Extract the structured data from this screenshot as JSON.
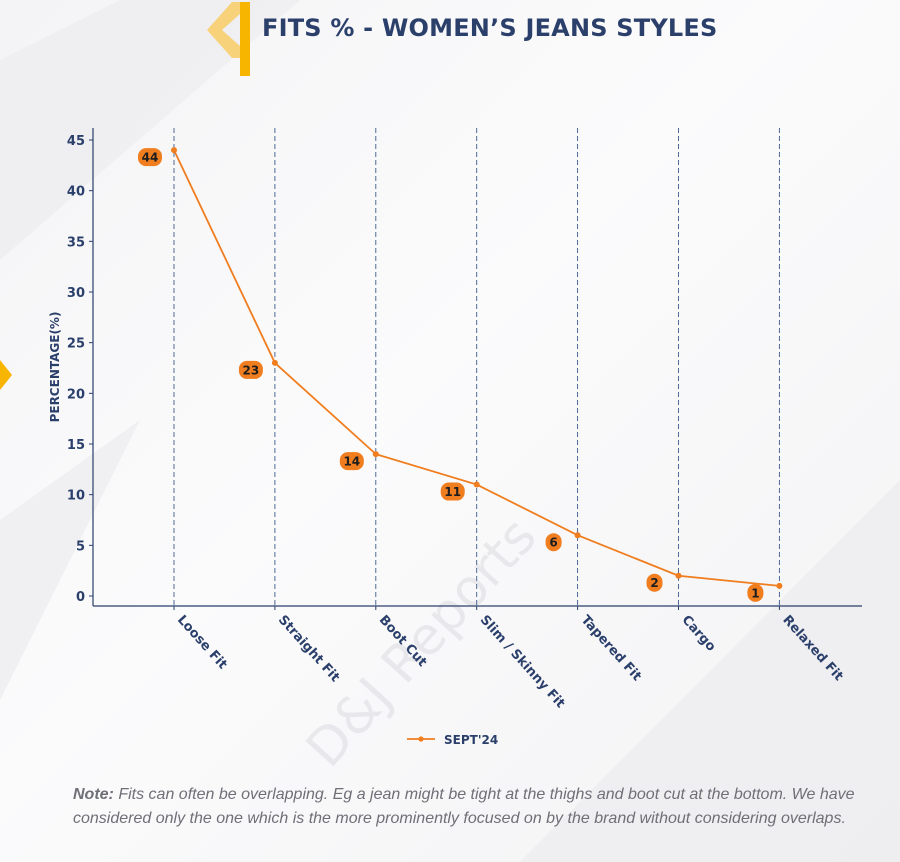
{
  "title": "FITS % - WOMEN’S JEANS STYLES",
  "note": {
    "label": "Note:",
    "text": " Fits can often be overlapping. Eg a jean might be tight at the thighs and boot cut at the bottom. We have considered only the one which is the more prominently focused on by the brand without considering overlaps."
  },
  "watermark": "D&J Reports",
  "colors": {
    "title": "#2b3f6b",
    "series": "#f07d1e",
    "axis": "#2b3f6b",
    "accent": "#f7b500"
  },
  "chart_data": {
    "type": "line",
    "ylabel": "PERCENTAGE(%)",
    "xlabel": "",
    "ylim": [
      0,
      45
    ],
    "yticks": [
      0,
      5,
      10,
      15,
      20,
      25,
      30,
      35,
      40,
      45
    ],
    "categories": [
      "Loose Fit",
      "Straight Fit",
      "Boot Cut",
      "Slim / Skinny Fit",
      "Tapered Fit",
      "Cargo",
      "Relaxed Fit"
    ],
    "series": [
      {
        "name": "SEPT'24",
        "values": [
          44,
          23,
          14,
          11,
          6,
          2,
          1
        ]
      }
    ],
    "data_labels": true,
    "grid": "vertical dashed",
    "legend": "bottom-center"
  }
}
